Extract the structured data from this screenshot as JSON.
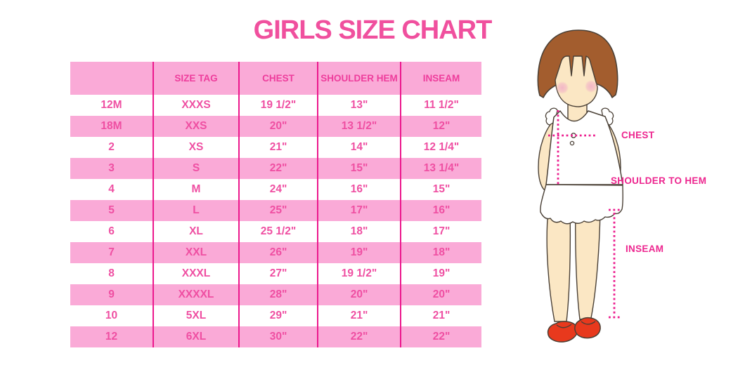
{
  "title": "GIRLS SIZE CHART",
  "palette": {
    "title_pink": "#F0509E",
    "row_pink": "#FAAAD7",
    "divider_pink": "#EC188D",
    "cell_text_pink": "#EF4FA2",
    "label_magenta": "#ED268F",
    "dotted_line_magenta": "#EC1F8F",
    "hair_brown": "#A35D2E",
    "skin_tone": "#FBE7C4",
    "shoe_red": "#E8391D"
  },
  "size_table": {
    "columns": [
      "",
      "SIZE TAG",
      "CHEST",
      "SHOULDER HEM",
      "INSEAM"
    ],
    "rows": [
      [
        "12M",
        "XXXS",
        "19 1/2\"",
        "13\"",
        "11 1/2\""
      ],
      [
        "18M",
        "XXS",
        "20\"",
        "13 1/2\"",
        "12\""
      ],
      [
        "2",
        "XS",
        "21\"",
        "14\"",
        "12 1/4\""
      ],
      [
        "3",
        "S",
        "22\"",
        "15\"",
        "13 1/4\""
      ],
      [
        "4",
        "M",
        "24\"",
        "16\"",
        "15\""
      ],
      [
        "5",
        "L",
        "25\"",
        "17\"",
        "16\""
      ],
      [
        "6",
        "XL",
        "25 1/2\"",
        "18\"",
        "17\""
      ],
      [
        "7",
        "XXL",
        "26\"",
        "19\"",
        "18\""
      ],
      [
        "8",
        "XXXL",
        "27\"",
        "19 1/2\"",
        "19\""
      ],
      [
        "9",
        "XXXXL",
        "28\"",
        "20\"",
        "20\""
      ],
      [
        "10",
        "5XL",
        "29\"",
        "21\"",
        "21\""
      ],
      [
        "12",
        "6XL",
        "30\"",
        "22\"",
        "22\""
      ]
    ]
  },
  "diagram": {
    "chest_label": "CHEST",
    "shoulder_to_hem_label": "SHOULDER TO HEM",
    "inseam_label": "INSEAM"
  }
}
